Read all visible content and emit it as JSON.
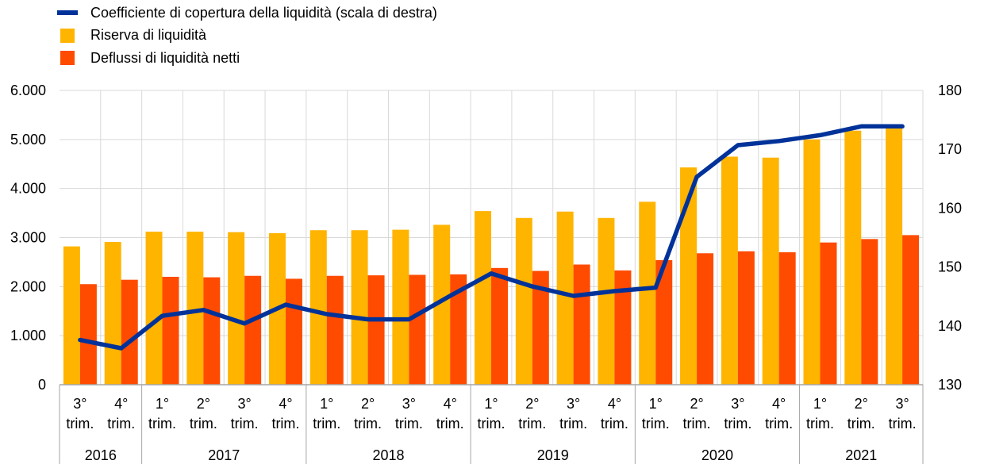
{
  "legend": {
    "line_label": "Coefficiente di copertura della liquidità (scala di destra)",
    "bar1_label": "Riserva di liquidità",
    "bar2_label": "Deflussi di liquidità netti"
  },
  "colors": {
    "line": "#003299",
    "bar1": "#ffb400",
    "bar2": "#ff4b00",
    "grid": "#d9d9d9"
  },
  "chart_data": {
    "type": "bar",
    "categories_quarter": [
      "3°\ntrim.",
      "4°\ntrim.",
      "1°\ntrim.",
      "2°\ntrim.",
      "3°\ntrim.",
      "4°\ntrim.",
      "1°\ntrim.",
      "2°\ntrim.",
      "3°\ntrim.",
      "4°\ntrim.",
      "1°\ntrim.",
      "2°\ntrim.",
      "3°\ntrim.",
      "4°\ntrim.",
      "1°\ntrim.",
      "2°\ntrim.",
      "3°\ntrim.",
      "4°\ntrim.",
      "1°\ntrim.",
      "2°\ntrim.",
      "3°\ntrim."
    ],
    "years": [
      {
        "label": "2016",
        "count": 2
      },
      {
        "label": "2017",
        "count": 4
      },
      {
        "label": "2018",
        "count": 4
      },
      {
        "label": "2019",
        "count": 4
      },
      {
        "label": "2020",
        "count": 4
      },
      {
        "label": "2021",
        "count": 3
      }
    ],
    "series": [
      {
        "name": "Riserva di liquidità",
        "axis": "left",
        "values": [
          2820,
          2910,
          3120,
          3120,
          3110,
          3090,
          3150,
          3150,
          3160,
          3260,
          3540,
          3400,
          3530,
          3400,
          3730,
          4430,
          4650,
          4630,
          5000,
          5180,
          5230
        ]
      },
      {
        "name": "Deflussi di liquidità netti",
        "axis": "left",
        "values": [
          2050,
          2140,
          2200,
          2190,
          2220,
          2160,
          2220,
          2230,
          2240,
          2250,
          2380,
          2320,
          2450,
          2330,
          2540,
          2680,
          2720,
          2700,
          2900,
          2970,
          3050
        ]
      },
      {
        "name": "Coefficiente di copertura della liquidità (scala di destra)",
        "axis": "right",
        "type": "line",
        "values": [
          137.6,
          136.2,
          141.7,
          142.7,
          140.4,
          143.6,
          142.0,
          141.1,
          141.1,
          145.1,
          148.9,
          146.7,
          145.1,
          145.9,
          146.5,
          165.3,
          170.7,
          171.4,
          172.4,
          173.9,
          173.9
        ]
      }
    ],
    "yleft": {
      "min": 0,
      "max": 6000,
      "ticks": [
        "0",
        "1.000",
        "2.000",
        "3.000",
        "4.000",
        "5.000",
        "6.000"
      ]
    },
    "yright": {
      "min": 130,
      "max": 180,
      "ticks": [
        "130",
        "140",
        "150",
        "160",
        "170",
        "180"
      ]
    },
    "grid": true,
    "legend_position": "top-left"
  }
}
